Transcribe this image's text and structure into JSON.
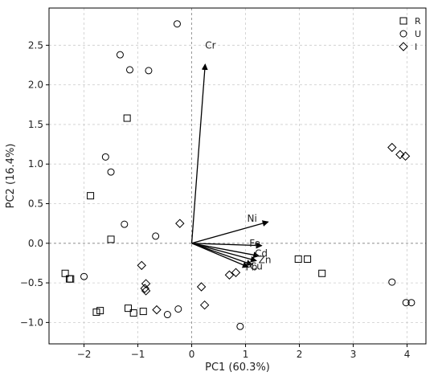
{
  "chart_data": {
    "type": "scatter",
    "xlabel": "PC1 (60.3%)",
    "ylabel": "PC2 (16.4%)",
    "xlim": [
      -2.65,
      4.35
    ],
    "ylim": [
      -1.27,
      2.97
    ],
    "x_ticks": [
      -2,
      -1,
      0,
      1,
      2,
      3,
      4
    ],
    "y_ticks": [
      -1.0,
      -0.5,
      0.0,
      0.5,
      1.0,
      1.5,
      2.0,
      2.5
    ],
    "y_tick_labels": [
      "−1.0",
      "−0.5",
      "0.0",
      "0.5",
      "1.0",
      "1.5",
      "2.0",
      "2.5"
    ],
    "x_tick_labels": [
      "−2",
      "−1",
      "0",
      "1",
      "2",
      "3",
      "4"
    ],
    "grid": true,
    "legend_position": "top-right",
    "series": [
      {
        "name": "R",
        "marker": "square",
        "points": [
          [
            -1.2,
            1.58
          ],
          [
            -1.88,
            0.6
          ],
          [
            -1.5,
            0.05
          ],
          [
            -2.35,
            -0.38
          ],
          [
            -2.27,
            -0.45
          ],
          [
            -2.25,
            -0.45
          ],
          [
            -1.18,
            -0.82
          ],
          [
            -1.7,
            -0.85
          ],
          [
            -1.77,
            -0.87
          ],
          [
            -1.08,
            -0.88
          ],
          [
            -0.9,
            -0.86
          ],
          [
            1.98,
            -0.2
          ],
          [
            2.15,
            -0.2
          ],
          [
            2.42,
            -0.38
          ]
        ]
      },
      {
        "name": "U",
        "marker": "circle",
        "points": [
          [
            -0.27,
            2.77
          ],
          [
            -1.33,
            2.38
          ],
          [
            -1.15,
            2.19
          ],
          [
            -0.8,
            2.18
          ],
          [
            -1.6,
            1.09
          ],
          [
            -1.5,
            0.9
          ],
          [
            -1.25,
            0.24
          ],
          [
            -0.67,
            0.09
          ],
          [
            -2.0,
            -0.42
          ],
          [
            -0.45,
            -0.9
          ],
          [
            -0.25,
            -0.83
          ],
          [
            0.9,
            -1.05
          ],
          [
            3.72,
            -0.49
          ],
          [
            3.98,
            -0.75
          ],
          [
            4.08,
            -0.75
          ]
        ]
      },
      {
        "name": "I",
        "marker": "diamond",
        "points": [
          [
            -0.22,
            0.25
          ],
          [
            -0.93,
            -0.28
          ],
          [
            -0.85,
            -0.51
          ],
          [
            -0.87,
            -0.57
          ],
          [
            -0.85,
            -0.6
          ],
          [
            -0.65,
            -0.84
          ],
          [
            0.18,
            -0.55
          ],
          [
            0.24,
            -0.78
          ],
          [
            0.7,
            -0.4
          ],
          [
            0.82,
            -0.37
          ],
          [
            3.72,
            1.21
          ],
          [
            3.87,
            1.12
          ],
          [
            3.97,
            1.1
          ]
        ]
      }
    ],
    "vectors": [
      {
        "name": "Cr",
        "x": 0.25,
        "y": 2.26,
        "label_x": 0.25,
        "label_y": 2.5
      },
      {
        "name": "Ni",
        "x": 1.42,
        "y": 0.27,
        "label_x": 1.03,
        "label_y": 0.31
      },
      {
        "name": "Fe",
        "x": 1.3,
        "y": -0.03,
        "label_x": 1.07,
        "label_y": 0.0
      },
      {
        "name": "Cd",
        "x": 1.25,
        "y": -0.16,
        "label_x": 1.17,
        "label_y": -0.13
      },
      {
        "name": "Zn",
        "x": 1.2,
        "y": -0.22,
        "label_x": 1.24,
        "label_y": -0.21
      },
      {
        "name": "Pb",
        "x": 1.12,
        "y": -0.27,
        "label_x": 1.0,
        "label_y": -0.3
      },
      {
        "name": "Cu",
        "x": 1.05,
        "y": -0.3,
        "label_x": 1.08,
        "label_y": -0.29
      }
    ]
  }
}
